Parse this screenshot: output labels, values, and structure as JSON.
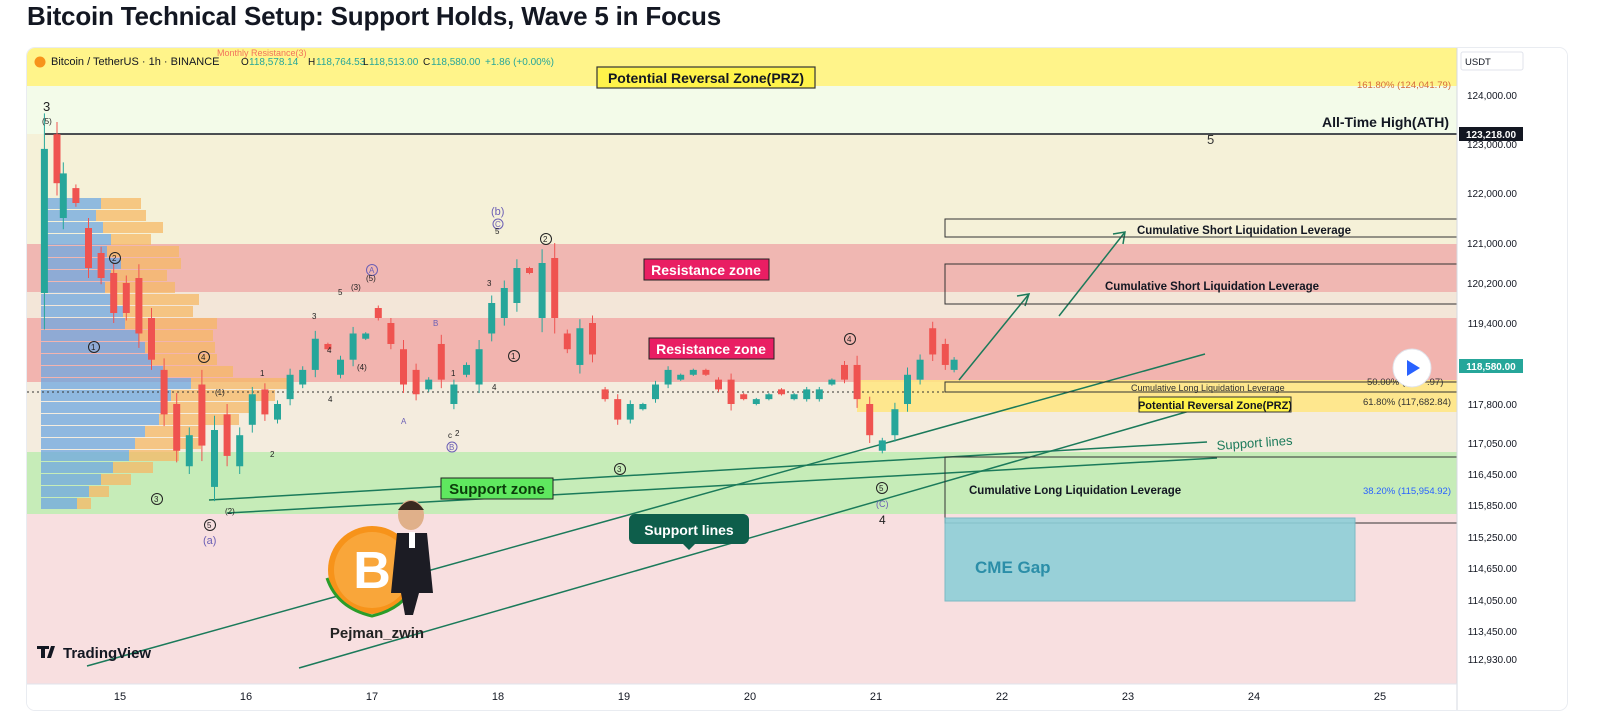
{
  "page": {
    "title": "Bitcoin Technical Setup: Support Holds, Wave 5 in Focus"
  },
  "header": {
    "symbol": "Bitcoin / TetherUS · 1h · BINANCE",
    "open_label": "O",
    "open": "118,578.14",
    "high_label": "H",
    "high": "118,764.53",
    "low_label": "L",
    "low": "118,513.00",
    "close_label": "C",
    "close": "118,580.00",
    "change": "+1.86 (+0.00%)",
    "monthly_resistance": "Monthly Resistance(3)"
  },
  "price_axis": {
    "currency": "USDT",
    "ticks": [
      "124,000.00",
      "123,000.00",
      "122,000.00",
      "121,000.00",
      "120,200.00",
      "119,400.00",
      "117,800.00",
      "117,050.00",
      "116,450.00",
      "115,850.00",
      "115,250.00",
      "114,650.00",
      "114,050.00",
      "113,450.00",
      "112,930.00"
    ],
    "ath_price": "123,218.00",
    "last_price": "118,580.00"
  },
  "time_axis": {
    "ticks": [
      "15",
      "16",
      "17",
      "18",
      "19",
      "20",
      "21",
      "22",
      "23",
      "24",
      "25"
    ]
  },
  "annotations": {
    "prz_top": "Potential Reversal Zone(PRZ)",
    "fib_1618": "161.80% (124,041.79)",
    "ath": "All-Time High(ATH)",
    "resistance_1": "Resistance zone",
    "resistance_2": "Resistance zone",
    "short_liq_1": "Cumulative Short Liquidation Leverage",
    "short_liq_2": "Cumulative Short Liquidation Leverage",
    "long_liq_small": "Cumulative Long Liquidation Leverage",
    "fib_50": "50.00% (1",
    "fib_50_tail": ".97)",
    "fib_618": "61.80% (117,682.84)",
    "prz_bottom": "Potential Reversal Zone(PRZ)",
    "support_lines_right": "Support lines",
    "support_zone": "Support zone",
    "long_liq": "Cumulative Long Liquidation Leverage",
    "fib_382": "38.20% (115,954.92)",
    "support_lines_bottom": "Support lines",
    "cme_gap": "CME Gap",
    "author": "Pejman_zwin",
    "brand": "TradingView",
    "logo_letter": "B"
  },
  "wave_labels": {
    "w3_top": "3",
    "w3_top_sub": "(5)",
    "w_b": "(b)",
    "w_c_circle": "C",
    "w_5_18": "5",
    "w_2_18": "2",
    "w_A_circle": "A",
    "w_5_17": "(5)",
    "w_5a": "5",
    "w_3a": "(3)",
    "w_3b": "3",
    "w_4a": "(4)",
    "w_4b": "4",
    "w_B": "B",
    "w_A": "A",
    "w_c2": "c",
    "w_2c": "2",
    "w_B_circle": "B",
    "w_1_18": "1",
    "w_4_18": "4",
    "w_1b": "1",
    "w_3c": "3",
    "w_2_left": "2",
    "w_1_left": "1",
    "w_4_left": "4",
    "w_1p": "(1)",
    "w_1q": "1",
    "w_3_left": "3",
    "w_5_left": "5",
    "w_2p": "(2)",
    "w_a": "(a)",
    "w_2q": "2",
    "w_4q": "4",
    "w_3_19": "3",
    "w_4_21": "4",
    "w_5_21": "5",
    "w_c_21": "(C)",
    "w_4_21b": "4",
    "w_5_target": "5"
  },
  "colors": {
    "resistance": "#f28b8b",
    "support": "#8fd98f",
    "prz": "#fff176",
    "up_candle": "#26a69a",
    "down_candle": "#ef5350",
    "trendline": "#1b7a5a",
    "cme": "#7ec8d6",
    "label_red": "#e91e63",
    "label_green": "#58e358"
  },
  "chart_data": {
    "type": "candlestick",
    "symbol": "BTC/USDT",
    "timeframe": "1h",
    "exchange": "BINANCE",
    "x": [
      "15",
      "16",
      "17",
      "18",
      "19",
      "20",
      "21",
      "22",
      "23",
      "24",
      "25"
    ],
    "ylim": [
      112700,
      124600
    ],
    "last_price": 118580,
    "ath": 123218,
    "zones": [
      {
        "name": "Resistance zone",
        "from": 120000,
        "to": 121000
      },
      {
        "name": "Resistance zone",
        "from": 118300,
        "to": 119500
      },
      {
        "name": "Support zone",
        "from": 115750,
        "to": 116800
      },
      {
        "name": "Potential Reversal Zone(PRZ)",
        "from": 124100,
        "to": 124600
      },
      {
        "name": "Potential Reversal Zone(PRZ)",
        "from": 117600,
        "to": 118200
      },
      {
        "name": "CME Gap",
        "from": 114050,
        "to": 115600
      }
    ],
    "fib_levels": [
      {
        "ratio": "161.80%",
        "price": 124041.79
      },
      {
        "ratio": "61.80%",
        "price": 117682.84
      },
      {
        "ratio": "38.20%",
        "price": 115954.92
      }
    ],
    "series": [
      {
        "name": "BTC/USDT",
        "points": [
          [
            14.4,
            120000,
            122900
          ],
          [
            14.5,
            122200,
            123200
          ],
          [
            14.55,
            121500,
            122400
          ],
          [
            14.65,
            121800,
            122100
          ],
          [
            14.75,
            120500,
            121300
          ],
          [
            14.85,
            120300,
            120800
          ],
          [
            14.95,
            119600,
            120400
          ],
          [
            15.05,
            119600,
            120200
          ],
          [
            15.15,
            119200,
            120300
          ],
          [
            15.25,
            118700,
            119500
          ],
          [
            15.35,
            117600,
            118500
          ],
          [
            15.45,
            116900,
            117800
          ],
          [
            15.55,
            116600,
            117200
          ],
          [
            15.65,
            117000,
            118200
          ],
          [
            15.75,
            116200,
            117300
          ],
          [
            15.85,
            116800,
            117600
          ],
          [
            15.95,
            116600,
            117200
          ],
          [
            16.05,
            117400,
            118000
          ],
          [
            16.15,
            117600,
            118100
          ],
          [
            16.25,
            117500,
            117800
          ],
          [
            16.35,
            117900,
            118400
          ],
          [
            16.45,
            118200,
            118500
          ],
          [
            16.55,
            118500,
            119100
          ],
          [
            16.65,
            118900,
            119000
          ],
          [
            16.75,
            118400,
            118700
          ],
          [
            16.85,
            118700,
            119200
          ],
          [
            16.95,
            119100,
            119200
          ],
          [
            17.05,
            119500,
            119700
          ],
          [
            17.15,
            119000,
            119400
          ],
          [
            17.25,
            118200,
            118900
          ],
          [
            17.35,
            118000,
            118500
          ],
          [
            17.45,
            118100,
            118300
          ],
          [
            17.55,
            118300,
            119000
          ],
          [
            17.65,
            117800,
            118200
          ],
          [
            17.75,
            118400,
            118600
          ],
          [
            17.85,
            118200,
            118900
          ],
          [
            17.95,
            119200,
            119800
          ],
          [
            18.05,
            119500,
            120100
          ],
          [
            18.15,
            119800,
            120500
          ],
          [
            18.25,
            120400,
            120500
          ],
          [
            18.35,
            119500,
            120600
          ],
          [
            18.45,
            119500,
            120700
          ],
          [
            18.55,
            118900,
            119200
          ],
          [
            18.65,
            118600,
            119300
          ],
          [
            18.75,
            118800,
            119400
          ],
          [
            18.85,
            117900,
            118100
          ],
          [
            18.95,
            117500,
            117900
          ],
          [
            19.05,
            117500,
            117800
          ],
          [
            19.15,
            117700,
            117800
          ],
          [
            19.25,
            117900,
            118200
          ],
          [
            19.35,
            118200,
            118500
          ],
          [
            19.45,
            118300,
            118400
          ],
          [
            19.55,
            118400,
            118500
          ],
          [
            19.65,
            118400,
            118500
          ],
          [
            19.75,
            118100,
            118300
          ],
          [
            19.85,
            117800,
            118300
          ],
          [
            19.95,
            117900,
            118000
          ],
          [
            20.05,
            117800,
            117900
          ],
          [
            20.15,
            117900,
            118000
          ],
          [
            20.25,
            118000,
            118100
          ],
          [
            20.35,
            117900,
            118000
          ],
          [
            20.45,
            117900,
            118100
          ],
          [
            20.55,
            117900,
            118100
          ],
          [
            20.65,
            118200,
            118300
          ],
          [
            20.75,
            118300,
            118600
          ],
          [
            20.85,
            117900,
            118600
          ],
          [
            20.95,
            117200,
            117800
          ],
          [
            21.05,
            116900,
            117100
          ],
          [
            21.15,
            117200,
            117700
          ],
          [
            21.25,
            117800,
            118400
          ],
          [
            21.35,
            118300,
            118700
          ],
          [
            21.45,
            118800,
            119300
          ],
          [
            21.55,
            118600,
            119000
          ],
          [
            21.62,
            118500,
            118700
          ]
        ]
      }
    ]
  }
}
